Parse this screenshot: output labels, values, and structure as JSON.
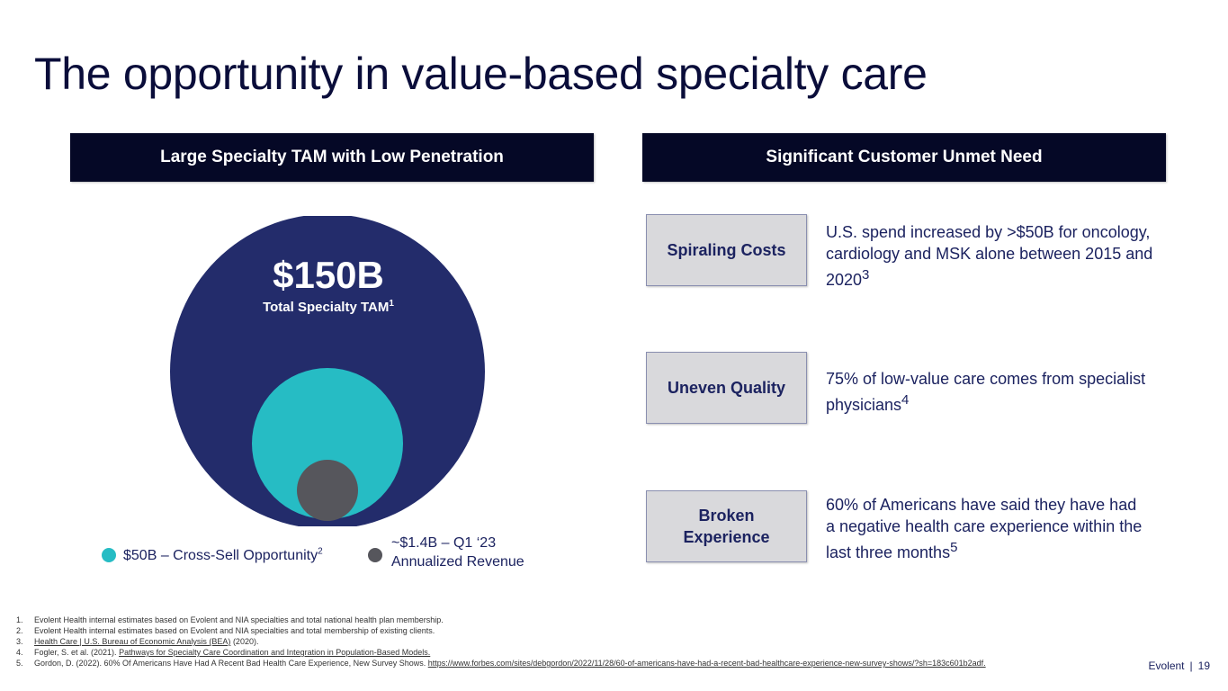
{
  "title": "The opportunity in value-based specialty care",
  "left_header": "Large Specialty TAM with Low Penetration",
  "right_header": "Significant Customer Unmet Need",
  "tam": {
    "value": "$150B",
    "label": "Total Specialty TAM",
    "label_ref": "1"
  },
  "legend": [
    {
      "text": "$50B – Cross-Sell Opportunity",
      "ref": "2",
      "color": "#26bcc4"
    },
    {
      "line1": "~$1.4B – Q1 ‘23",
      "line2": "Annualized Revenue",
      "color": "#56565c"
    }
  ],
  "colors": {
    "outer_circle": "#232c6b",
    "middle_circle": "#26bcc4",
    "inner_circle": "#56565c",
    "header_bg": "#050826"
  },
  "needs": [
    {
      "label": "Spiraling Costs",
      "text": "U.S. spend increased by >$50B for oncology, cardiology and MSK alone between 2015 and 2020",
      "ref": "3"
    },
    {
      "label": "Uneven Quality",
      "text": "75% of low-value care comes from specialist physicians",
      "ref": "4"
    },
    {
      "label": "Broken Experience",
      "text": "60% of Americans have said they have had a negative health care experience within the last three months",
      "ref": "5"
    }
  ],
  "footnotes": [
    {
      "num": "1.",
      "text": "Evolent Health internal estimates based on Evolent and NIA specialties and total national health plan membership."
    },
    {
      "num": "2.",
      "text": "Evolent Health internal estimates based on Evolent and NIA specialties and total membership of existing clients."
    },
    {
      "num": "3.",
      "link": "Health Care | U.S. Bureau of Economic Analysis (BEA)",
      "text": " (2020)."
    },
    {
      "num": "4.",
      "prefix": "Fogler, S. et al. (2021). ",
      "link": "Pathways for Specialty Care Coordination and Integration in Population-Based Models."
    },
    {
      "num": "5.",
      "prefix": "Gordon, D. (2022). 60% Of Americans Have Had A Recent Bad Health Care Experience, New Survey Shows. ",
      "link": "https://www.forbes.com/sites/debgordon/2022/11/28/60-of-americans-have-had-a-recent-bad-healthcare-experience-new-survey-shows/?sh=183c601b2adf."
    }
  ],
  "footer": {
    "brand": "Evolent",
    "separator": "|",
    "page": "19"
  }
}
